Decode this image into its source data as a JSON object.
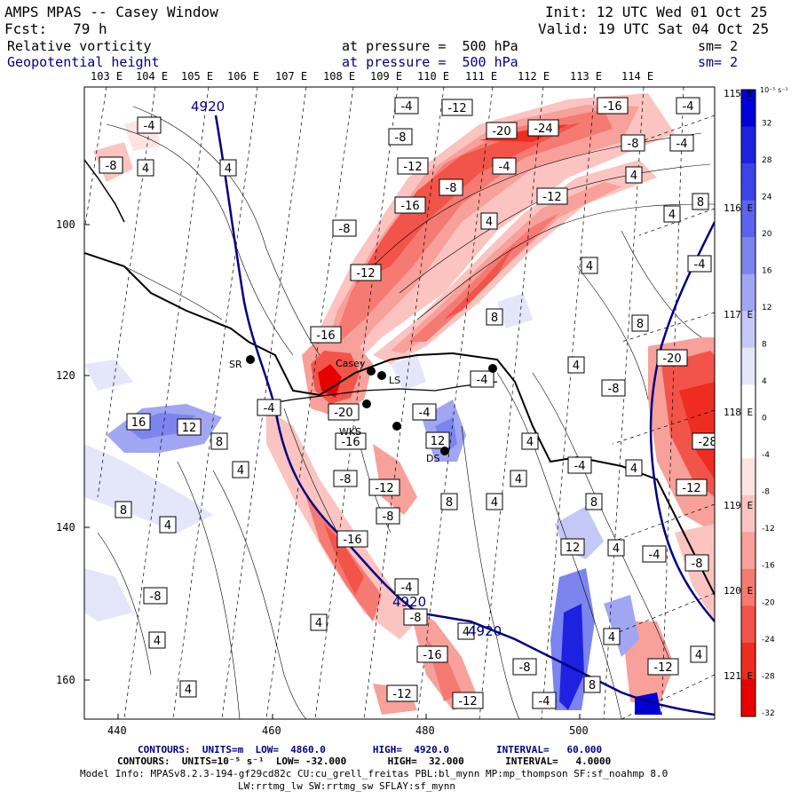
{
  "header": {
    "title": "AMPS MPAS -- Casey Window",
    "init": "Init: 12 UTC Wed 01 Oct 25",
    "fcst": "Fcst:   79 h",
    "valid": "Valid: 19 UTC Sat 04 Oct 25",
    "field1_name": "Relative vorticity",
    "field1_level": "at pressure =  500 hPa",
    "field1_sm": "sm= 2",
    "field2_name": "Geopotential height",
    "field2_level": "at pressure =  500 hPa",
    "field2_sm": "sm= 2"
  },
  "lon_labels_top": [
    "103 E",
    "104 E",
    "105 E",
    "106 E",
    "107 E",
    "108 E",
    "109 E",
    "110 E",
    "111 E",
    "112 E",
    "113 E",
    "114 E"
  ],
  "lon_labels_right": [
    "115 E",
    "116 E",
    "117 E",
    "118 E",
    "119 E",
    "120 E",
    "121 E"
  ],
  "axes": {
    "x_ticks": [
      "440",
      "460",
      "480",
      "500"
    ],
    "y_ticks": [
      "100",
      "120",
      "140",
      "160"
    ]
  },
  "colorbar": {
    "units": "10⁻⁵ s⁻¹",
    "labels": [
      "32",
      "28",
      "24",
      "20",
      "16",
      "12",
      "8",
      "4",
      "0",
      "-4",
      "-8",
      "-12",
      "-16",
      "-20",
      "-24",
      "-28",
      "-32"
    ],
    "colors": [
      "#0000d8",
      "#1e22e0",
      "#3c44e8",
      "#5a64ec",
      "#7c84ee",
      "#a0a6f2",
      "#c4c8f6",
      "#e4e6fa",
      "#ffffff",
      "#ffffff",
      "#fde4e2",
      "#fbc4c0",
      "#f8a09a",
      "#f57a72",
      "#f2544a",
      "#ee2c22",
      "#e80000"
    ]
  },
  "stations": [
    "SR",
    "Casey",
    "LS",
    "WKS",
    "DS"
  ],
  "contour_labels": {
    "height": "4920",
    "vorticity": [
      "-4",
      "-8",
      "-12",
      "-16",
      "-20",
      "-24",
      "-28",
      "4",
      "8",
      "12",
      "16"
    ]
  },
  "footer": {
    "line1": "CONTOURS:  UNITS=m  LOW=  4860.0        HIGH=  4920.0        INTERVAL=   60.000",
    "line2": "CONTOURS:  UNITS=10⁻⁵ s⁻¹  LOW= -32.000       HIGH=  32.000       INTERVAL=   4.0000",
    "line3": "Model Info: MPASv8.2.3-194-gf29cd82c CU:cu_grell_freitas PBL:bl_mynn MP:mp_thompson SF:sf_noahmp 8.0",
    "line4": "LW:rrtmg_lw SW:rrtmg_sw SFLAY:sf_mynn"
  }
}
